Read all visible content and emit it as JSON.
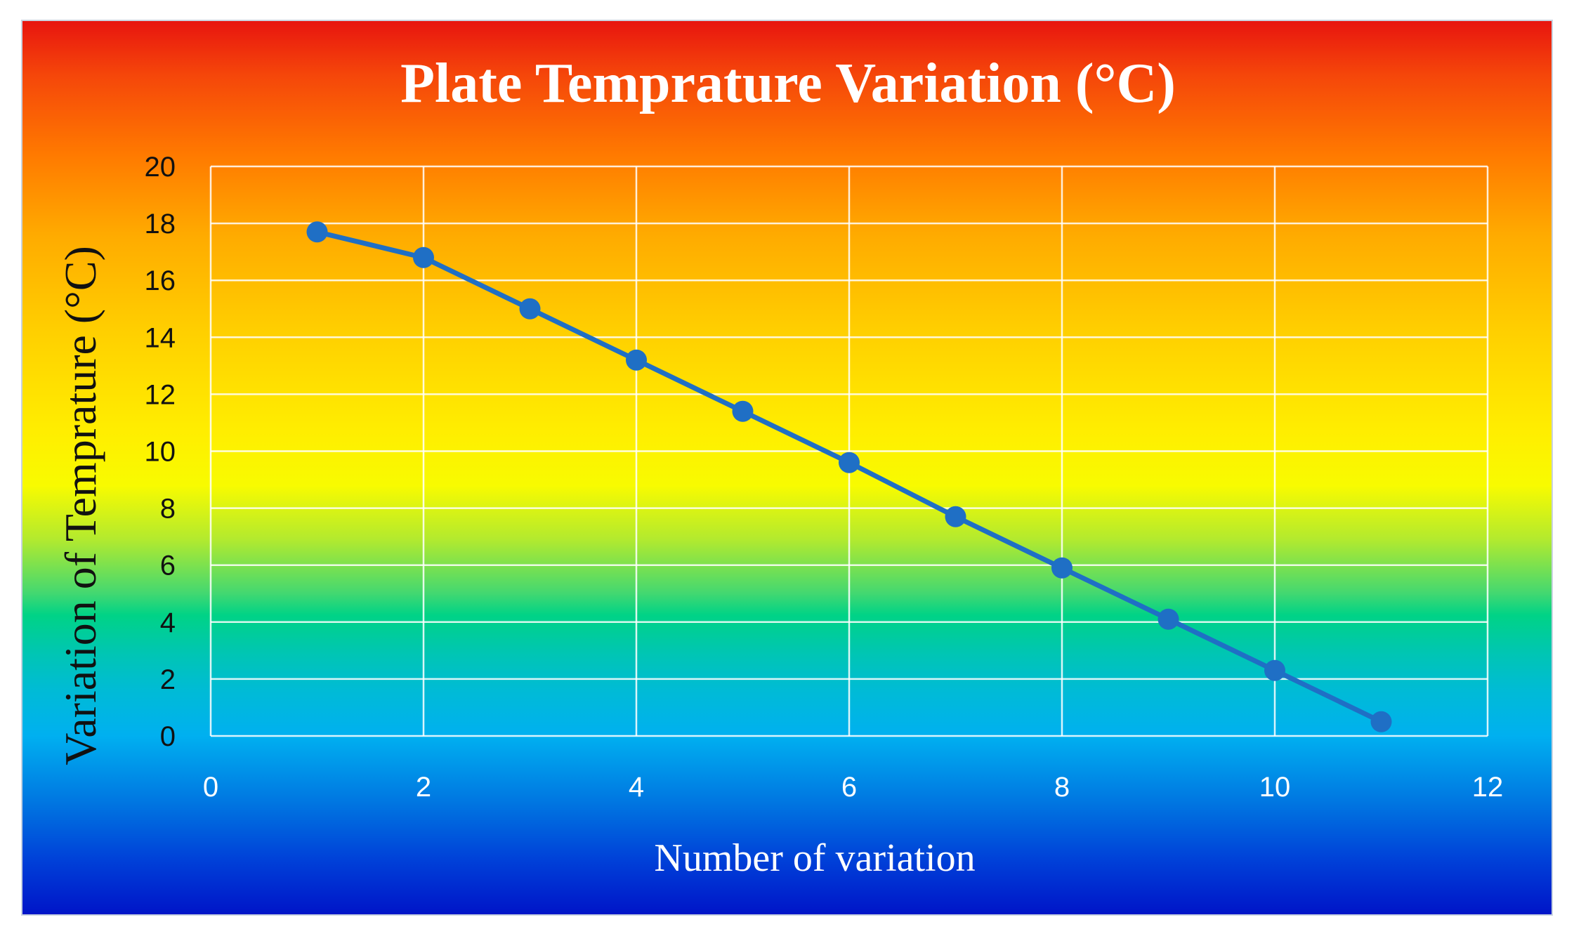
{
  "chart_data": {
    "type": "line",
    "title": "Plate Temprature Variation (°C)",
    "xlabel": "Number of variation",
    "ylabel": "Variation of Temprature (°C)",
    "xlim": [
      0,
      12
    ],
    "ylim": [
      0,
      20
    ],
    "xticks": [
      "0",
      "2",
      "4",
      "6",
      "8",
      "10",
      "12"
    ],
    "yticks": [
      "0",
      "2",
      "4",
      "6",
      "8",
      "10",
      "12",
      "14",
      "16",
      "18",
      "20"
    ],
    "grid": true,
    "series": [
      {
        "name": "Plate Temprature Variation",
        "color": "#1f6fc5",
        "x": [
          1,
          2,
          3,
          4,
          5,
          6,
          7,
          8,
          9,
          10,
          11
        ],
        "values": [
          17.7,
          16.8,
          15.0,
          13.2,
          11.4,
          9.6,
          7.7,
          5.9,
          4.1,
          2.3,
          0.5
        ]
      }
    ]
  }
}
